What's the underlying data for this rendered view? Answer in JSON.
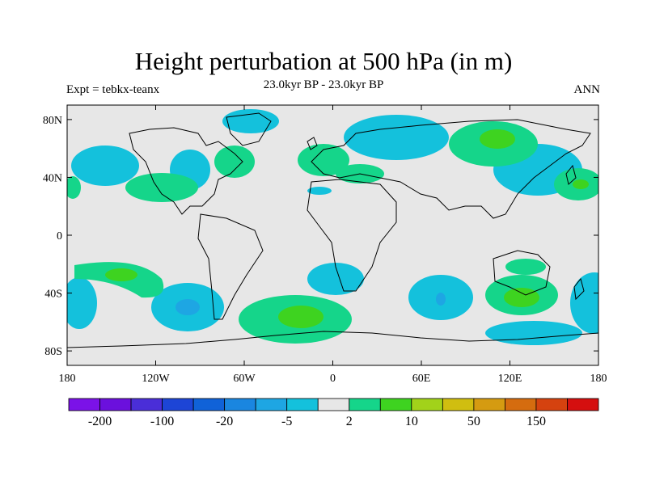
{
  "title": "Height perturbation at 500 hPa (in m)",
  "subtitle": "23.0kyr BP - 23.0kyr BP",
  "left_label": "Expt = tebkx-teanx",
  "right_label": "ANN",
  "lat_ticks": [
    "80N",
    "40N",
    "0",
    "40S",
    "80S"
  ],
  "lon_ticks": [
    "180",
    "120W",
    "60W",
    "0",
    "60E",
    "120E",
    "180"
  ],
  "colorbar": {
    "colors": [
      "#7b12e8",
      "#6b10dd",
      "#4a2ed8",
      "#1d45d6",
      "#1062d8",
      "#1a86e0",
      "#1ea6e3",
      "#14c1dc",
      "#e7e7e7",
      "#15d58a",
      "#3ed320",
      "#a2d21a",
      "#d0be10",
      "#d59b11",
      "#d56c0f",
      "#d5420f",
      "#d50f0f"
    ],
    "labels": [
      "-200",
      "-100",
      "-20",
      "-5",
      "2",
      "10",
      "50",
      "150"
    ]
  },
  "legend_colors": {
    "ocean_bg": "#e7e7e7",
    "coast": "#000000"
  }
}
